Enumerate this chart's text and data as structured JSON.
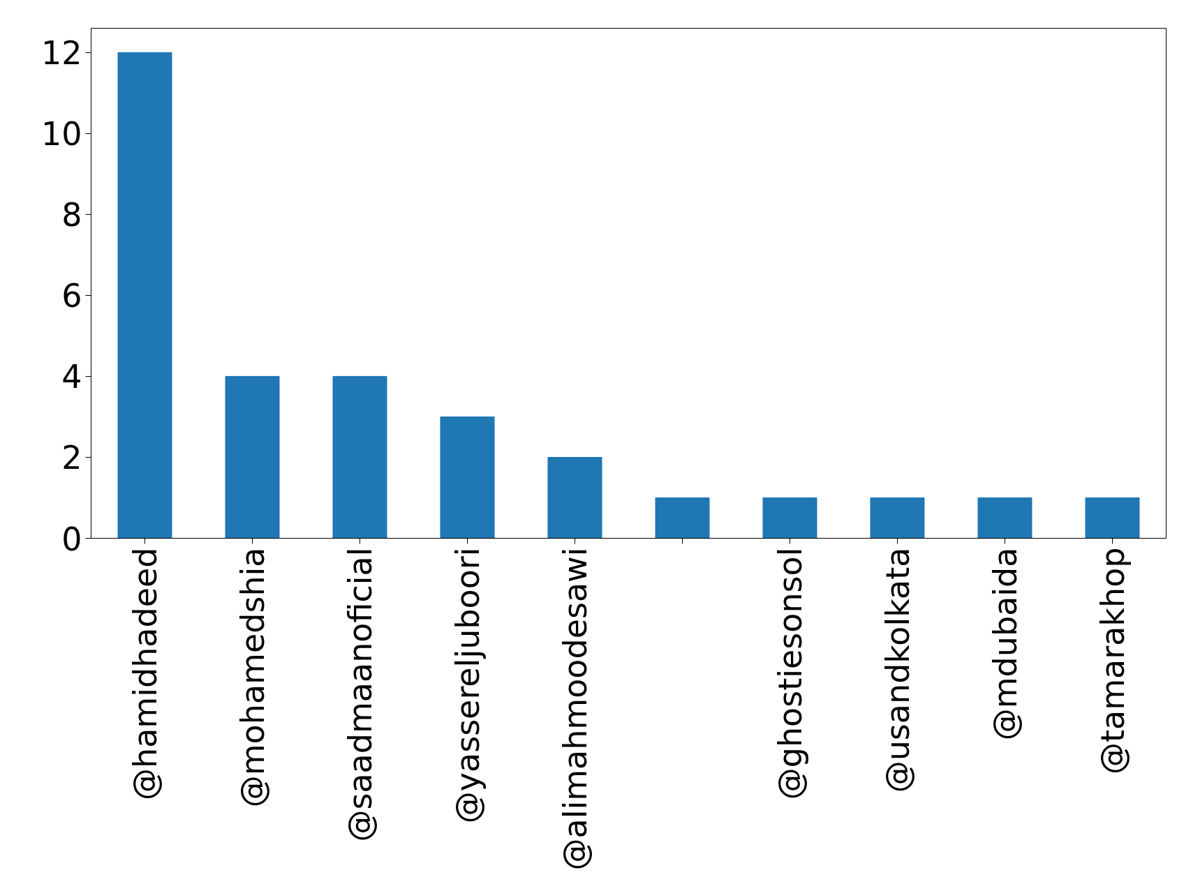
{
  "chart_data": {
    "type": "bar",
    "categories": [
      "@hamidhadeed",
      "@mohamedshia",
      "@saadmaanoficial",
      "@yassereljuboori",
      "@alimahmoodesawi",
      null,
      "@ghostiesonsol",
      "@usandkolkata",
      "@mdubaida",
      "@tamarakhop"
    ],
    "values": [
      12,
      4,
      4,
      3,
      2,
      1,
      1,
      1,
      1,
      1
    ],
    "color": "#1f77b4",
    "ylim": [
      0,
      12.6
    ],
    "yticks": [
      0,
      2,
      4,
      6,
      8,
      10,
      12
    ],
    "grid": false
  }
}
